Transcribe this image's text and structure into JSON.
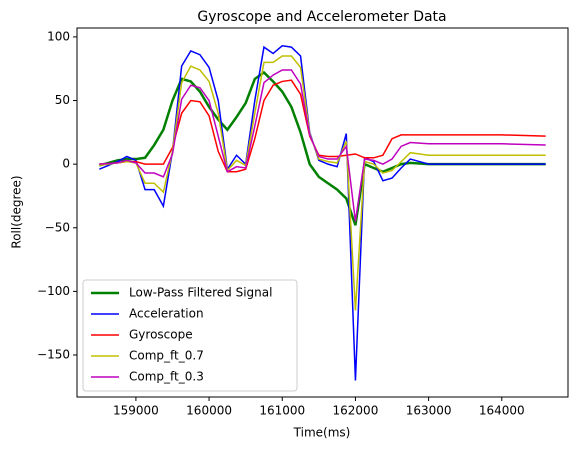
{
  "chart_data": {
    "type": "line",
    "title": "Gyroscope and Accelerometer Data",
    "xlabel": "Time(ms)",
    "ylabel": "Roll(degree)",
    "x": [
      158500,
      158750,
      158875,
      159000,
      159125,
      159250,
      159375,
      159500,
      159625,
      159750,
      159875,
      160000,
      160125,
      160250,
      160375,
      160500,
      160625,
      160750,
      160875,
      161000,
      161125,
      161250,
      161375,
      161500,
      161625,
      161750,
      161875,
      162000,
      162125,
      162250,
      162375,
      162500,
      162625,
      162750,
      163000,
      163500,
      164000,
      164600
    ],
    "series": [
      {
        "name": "Low-Pass Filtered Signal",
        "color": "#008000",
        "linewidth": 2.5,
        "values": [
          -1,
          3,
          4,
          4,
          5,
          15,
          27,
          50,
          67,
          65,
          57,
          45,
          35,
          27,
          37,
          48,
          67,
          72,
          65,
          57,
          45,
          25,
          0,
          -10,
          -15,
          -20,
          -27,
          -48,
          0,
          -3,
          -6,
          -3,
          0,
          1,
          0,
          0,
          0,
          0
        ]
      },
      {
        "name": "Acceleration",
        "color": "#0000ff",
        "linewidth": 1.5,
        "values": [
          -4,
          2,
          6,
          3,
          -20,
          -20,
          -33,
          10,
          77,
          89,
          86,
          76,
          50,
          -4,
          7,
          0,
          50,
          92,
          87,
          93,
          92,
          85,
          25,
          3,
          0,
          -2,
          24,
          -170,
          5,
          2,
          -13,
          -11,
          -3,
          4,
          0,
          0,
          0,
          0
        ]
      },
      {
        "name": "Gyroscope",
        "color": "#ff0000",
        "linewidth": 1.5,
        "values": [
          0,
          1,
          2,
          2,
          0,
          0,
          0,
          13,
          40,
          50,
          49,
          38,
          10,
          -6,
          -6,
          -4,
          20,
          50,
          62,
          65,
          66,
          55,
          22,
          7,
          6,
          6,
          7,
          8,
          5,
          5,
          7,
          20,
          23,
          23,
          23,
          23,
          23,
          22
        ]
      },
      {
        "name": "Comp_ft_0.7",
        "color": "#bfbf00",
        "linewidth": 1.5,
        "values": [
          -1,
          1,
          2,
          1,
          -15,
          -15,
          -22,
          10,
          64,
          77,
          74,
          65,
          40,
          -5,
          3,
          -1,
          40,
          80,
          80,
          85,
          85,
          76,
          24,
          4,
          2,
          1,
          18,
          -115,
          2,
          0,
          -7,
          -5,
          2,
          9,
          7,
          7,
          7,
          7
        ]
      },
      {
        "name": "Comp_ft_0.3",
        "color": "#bf00bf",
        "linewidth": 1.5,
        "values": [
          0,
          1,
          3,
          1,
          -7,
          -7,
          -10,
          8,
          51,
          62,
          60,
          50,
          22,
          -6,
          -2,
          -3,
          30,
          64,
          70,
          74,
          74,
          63,
          23,
          6,
          4,
          4,
          14,
          -45,
          4,
          3,
          0,
          4,
          14,
          17,
          16,
          16,
          16,
          15
        ]
      }
    ],
    "xlim": [
      158195,
      164905
    ],
    "xticks": [
      159000,
      160000,
      161000,
      162000,
      163000,
      164000
    ],
    "ylim": [
      -183,
      107
    ],
    "yticks": [
      {
        "value": -150,
        "label": "−150"
      },
      {
        "value": -100,
        "label": "−100"
      },
      {
        "value": -50,
        "label": "−50"
      },
      0,
      50,
      100
    ],
    "legend": "lower left",
    "grid": false
  }
}
